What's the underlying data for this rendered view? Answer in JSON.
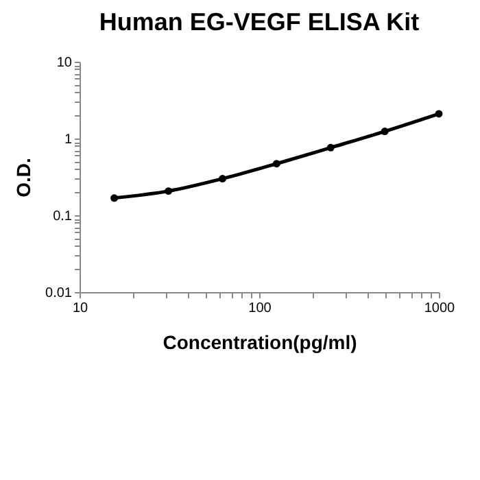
{
  "chart_data": {
    "type": "line",
    "title": "Human EG-VEGF ELISA Kit",
    "xlabel": "Concentration(pg/ml)",
    "ylabel": "O.D.",
    "log": "xy",
    "marker": "circle",
    "line_style": "solid",
    "grid": false,
    "legend": false,
    "x": [
      15.6,
      31.25,
      62.5,
      125,
      250,
      500,
      1000
    ],
    "series": [
      {
        "color": "#000000",
        "values": [
          0.168,
          0.207,
          0.3,
          0.47,
          0.76,
          1.24,
          2.1
        ]
      }
    ],
    "xlim": [
      10,
      1000
    ],
    "xticks": [
      10,
      {
        "value": 20,
        "label": null
      },
      {
        "value": 30,
        "label": null
      },
      {
        "value": 40,
        "label": null
      },
      {
        "value": 50,
        "label": null
      },
      {
        "value": 60,
        "label": null
      },
      {
        "value": 70,
        "label": null
      },
      {
        "value": 80,
        "label": null
      },
      {
        "value": 90,
        "label": null
      },
      100,
      {
        "value": 200,
        "label": null
      },
      {
        "value": 300,
        "label": null
      },
      {
        "value": 400,
        "label": null
      },
      {
        "value": 500,
        "label": null
      },
      {
        "value": 600,
        "label": null
      },
      {
        "value": 700,
        "label": null
      },
      {
        "value": 800,
        "label": null
      },
      {
        "value": 900,
        "label": null
      },
      1000
    ],
    "ylim": [
      0.01,
      10
    ],
    "yticks": [
      0.01,
      {
        "value": 0.02,
        "label": null
      },
      {
        "value": 0.03,
        "label": null
      },
      {
        "value": 0.04,
        "label": null
      },
      {
        "value": 0.05,
        "label": null
      },
      {
        "value": 0.06,
        "label": null
      },
      {
        "value": 0.07,
        "label": null
      },
      {
        "value": 0.08,
        "label": null
      },
      {
        "value": 0.09,
        "label": null
      },
      0.1,
      {
        "value": 0.2,
        "label": null
      },
      {
        "value": 0.3,
        "label": null
      },
      {
        "value": 0.4,
        "label": null
      },
      {
        "value": 0.5,
        "label": null
      },
      {
        "value": 0.6,
        "label": null
      },
      {
        "value": 0.7,
        "label": null
      },
      {
        "value": 0.8,
        "label": null
      },
      {
        "value": 0.9,
        "label": null
      },
      1,
      {
        "value": 2,
        "label": null
      },
      {
        "value": 3,
        "label": null
      },
      {
        "value": 4,
        "label": null
      },
      {
        "value": 5,
        "label": null
      },
      {
        "value": 6,
        "label": null
      },
      {
        "value": 7,
        "label": null
      },
      {
        "value": 8,
        "label": null
      },
      {
        "value": 9,
        "label": null
      },
      10
    ]
  }
}
